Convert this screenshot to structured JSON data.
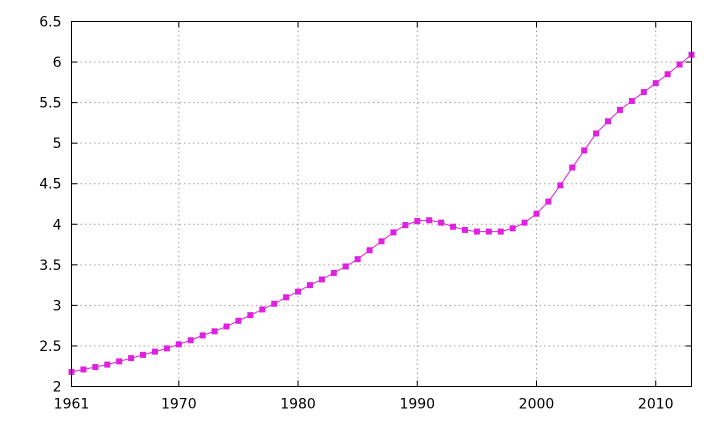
{
  "chart_data": {
    "type": "line",
    "title": "",
    "xlabel": "",
    "ylabel": "",
    "xlim": [
      1961,
      2013
    ],
    "ylim": [
      2,
      6.5
    ],
    "x_ticks": [
      1961,
      1970,
      1980,
      1990,
      2000,
      2010
    ],
    "y_ticks": [
      2,
      2.5,
      3,
      3.5,
      4,
      4.5,
      5,
      5.5,
      6,
      6.5
    ],
    "x_tick_labels": [
      "1961",
      "1970",
      "1980",
      "1990",
      "2000",
      "2010"
    ],
    "y_tick_labels": [
      "2",
      "2.5",
      "3",
      "3.5",
      "4",
      "4.5",
      "5",
      "5.5",
      "6",
      "6.5"
    ],
    "grid": true,
    "legend": "none",
    "series": [
      {
        "color": "#e020e0",
        "marker": "square",
        "x": [
          1961,
          1962,
          1963,
          1964,
          1965,
          1966,
          1967,
          1968,
          1969,
          1970,
          1971,
          1972,
          1973,
          1974,
          1975,
          1976,
          1977,
          1978,
          1979,
          1980,
          1981,
          1982,
          1983,
          1984,
          1985,
          1986,
          1987,
          1988,
          1989,
          1990,
          1991,
          1992,
          1993,
          1994,
          1995,
          1996,
          1997,
          1998,
          1999,
          2000,
          2001,
          2002,
          2003,
          2004,
          2005,
          2006,
          2007,
          2008,
          2009,
          2010,
          2011,
          2012,
          2013
        ],
        "values": [
          2.18,
          2.21,
          2.24,
          2.27,
          2.31,
          2.35,
          2.39,
          2.43,
          2.47,
          2.52,
          2.57,
          2.63,
          2.68,
          2.74,
          2.81,
          2.88,
          2.95,
          3.02,
          3.1,
          3.17,
          3.25,
          3.32,
          3.4,
          3.48,
          3.57,
          3.68,
          3.79,
          3.9,
          3.99,
          4.04,
          4.05,
          4.02,
          3.97,
          3.93,
          3.91,
          3.91,
          3.91,
          3.95,
          4.02,
          4.13,
          4.28,
          4.48,
          4.7,
          4.91,
          5.12,
          5.27,
          5.41,
          5.52,
          5.63,
          5.74,
          5.85,
          5.97,
          6.09
        ]
      }
    ]
  }
}
